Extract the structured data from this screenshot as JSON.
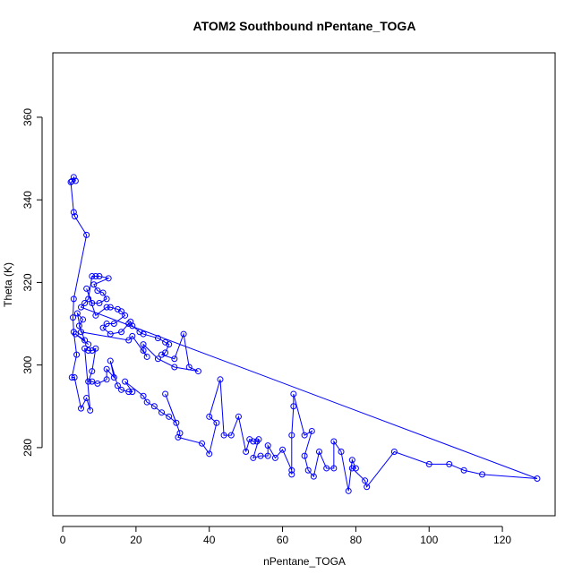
{
  "chart_data": {
    "type": "line",
    "title": "ATOM2 Southbound nPentane_TOGA",
    "x_label": "nPentane_TOGA",
    "y_label": "Theta (K)",
    "xlim": [
      -2.7,
      134.4
    ],
    "ylim": [
      263.5,
      375.6
    ],
    "xticks": [
      0,
      20,
      40,
      60,
      80,
      100,
      120
    ],
    "yticks": [
      280,
      300,
      320,
      340,
      360
    ],
    "grid": false,
    "markers": "open-circle",
    "x": [
      2.5,
      3,
      3.5,
      2.2,
      3,
      3.3,
      6.5,
      3,
      2.8,
      3,
      3.8,
      2.5,
      3.2,
      5,
      6.5,
      7.5,
      6,
      7,
      8,
      9,
      8,
      7,
      8,
      9.5,
      12,
      12,
      14,
      13,
      15,
      16,
      18,
      19,
      17,
      22,
      23,
      25,
      27,
      29,
      31,
      28,
      32,
      31.5,
      38,
      40,
      42,
      40,
      43,
      44,
      46,
      48,
      50,
      51,
      52,
      53,
      53.5,
      52,
      54,
      56,
      56,
      58,
      60,
      62.5,
      62.5,
      62.5,
      63,
      63,
      66,
      68,
      66,
      67,
      68.5,
      70,
      72,
      74,
      74,
      76,
      78,
      79,
      80,
      79,
      82.5,
      83,
      90.5,
      100,
      105.5,
      109.5,
      114.5,
      129.5,
      5,
      6,
      7,
      8,
      9,
      10,
      12.5,
      8.5,
      9.5,
      11,
      12,
      10,
      8,
      6.5,
      9,
      12,
      13,
      15,
      16,
      17,
      14,
      12,
      11,
      13,
      16,
      18,
      18.5,
      19,
      21,
      22,
      26,
      28,
      29,
      28,
      27,
      30.5,
      33,
      34.5,
      37,
      30.5,
      26,
      22,
      22,
      23,
      19,
      18,
      5,
      4,
      5.5,
      4.5,
      6,
      3.5,
      7
    ],
    "series": [
      {
        "name": "nPentane_TOGA",
        "color": "#0000ff",
        "values": [
          344.5,
          345.5,
          344.6,
          344.3,
          337,
          336,
          331.5,
          316,
          311.5,
          308,
          302.5,
          297,
          297,
          289.5,
          292,
          289,
          304,
          303.5,
          303.5,
          304,
          298.5,
          296,
          296,
          295.5,
          296.5,
          299,
          297,
          301,
          295,
          294,
          293.5,
          293.5,
          296,
          292.5,
          291,
          290,
          288.5,
          287.5,
          286,
          293,
          283.5,
          282.5,
          281,
          278.5,
          286,
          287.5,
          296.5,
          283,
          283,
          287.5,
          279,
          282,
          281.5,
          281.5,
          282,
          277.5,
          278,
          278,
          280.5,
          277.5,
          279.5,
          274.5,
          273.5,
          283,
          290,
          293,
          283,
          284,
          278,
          274.5,
          273,
          279,
          275,
          275,
          281.5,
          279,
          269.5,
          277,
          275,
          275,
          272,
          270.5,
          279,
          276,
          276,
          274.5,
          273.5,
          272.5,
          314,
          315,
          316,
          321.5,
          321.5,
          321.5,
          321,
          319.5,
          318,
          317.5,
          316,
          315,
          315,
          318.5,
          312,
          314,
          314,
          313.5,
          313,
          312,
          310,
          310,
          309,
          307.5,
          308,
          310,
          310.5,
          309.5,
          308,
          307.5,
          306.5,
          305.5,
          305,
          303,
          302.5,
          301.5,
          307.5,
          299.5,
          298.5,
          299.5,
          301.5,
          305,
          303.5,
          302,
          307,
          306,
          308,
          312.5,
          311,
          309.5,
          306,
          307.5,
          305
        ]
      }
    ]
  }
}
